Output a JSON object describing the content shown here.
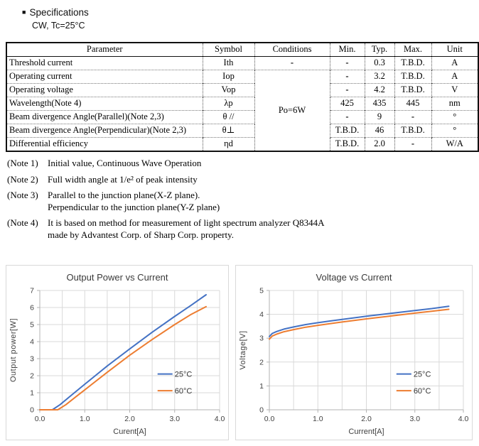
{
  "header": {
    "bullet": "■",
    "title": "Specifications",
    "condition": "CW, Tc=25°C"
  },
  "table": {
    "headers": [
      "Parameter",
      "Symbol",
      "Conditions",
      "Min.",
      "Typ.",
      "Max.",
      "Unit"
    ],
    "merged_condition": "Po=6W",
    "rows": [
      {
        "parameter": "Threshold current",
        "symbol": "Ith",
        "condition": "-",
        "min": "-",
        "typ": "0.3",
        "max": "T.B.D.",
        "unit": "A"
      },
      {
        "parameter": "Operating current",
        "symbol": "Iop",
        "min": "-",
        "typ": "3.2",
        "max": "T.B.D.",
        "unit": "A"
      },
      {
        "parameter": "Operating voltage",
        "symbol": "Vop",
        "min": "-",
        "typ": "4.2",
        "max": "T.B.D.",
        "unit": "V"
      },
      {
        "parameter": "Wavelength(Note 4)",
        "symbol": "λp",
        "min": "425",
        "typ": "435",
        "max": "445",
        "unit": "nm"
      },
      {
        "parameter": "Beam divergence Angle(Parallel)(Note 2,3)",
        "symbol": "θ //",
        "min": "-",
        "typ": "9",
        "max": "-",
        "unit": "°"
      },
      {
        "parameter": "Beam divergence Angle(Perpendicular)(Note 2,3)",
        "symbol": "θ⊥",
        "min": "T.B.D.",
        "typ": "46",
        "max": "T.B.D.",
        "unit": "°"
      },
      {
        "parameter": "Differential efficiency",
        "symbol": "ηd",
        "min": "T.B.D.",
        "typ": "2.0",
        "max": "-",
        "unit": "W/A"
      }
    ]
  },
  "notes": [
    {
      "label": "(Note 1)",
      "lines": [
        "Initial value, Continuous Wave Operation"
      ]
    },
    {
      "label": "(Note 2)",
      "lines": [
        "Full width angle at 1/e² of peak intensity"
      ]
    },
    {
      "label": "(Note 3)",
      "lines": [
        "Parallel to the junction plane(X-Z plane).",
        "Perpendicular to the junction plane(Y-Z plane)"
      ]
    },
    {
      "label": "(Note 4)",
      "lines": [
        "It is based on method for measurement of light spectrum analyzer Q8344A",
        "made by Advantest Corp. of Sharp Corp. property."
      ]
    }
  ],
  "chart_data": [
    {
      "type": "line",
      "title": "Output Power vs Current",
      "xlabel": "Curent[A]",
      "ylabel": "Output power[W]",
      "xlim": [
        0,
        4.0
      ],
      "ylim": [
        0,
        7
      ],
      "xticks": [
        0,
        1,
        2,
        3,
        4
      ],
      "xtick_labels": [
        "0.0",
        "1.0",
        "2.0",
        "3.0",
        "4.0"
      ],
      "yticks": [
        0,
        1,
        2,
        3,
        4,
        5,
        6,
        7
      ],
      "x_grid_step": 0.5,
      "grid": true,
      "legend_position": "inside-right",
      "series": [
        {
          "name": "25°C",
          "color": "#4472C4",
          "points": [
            [
              0,
              0
            ],
            [
              0.28,
              0
            ],
            [
              0.45,
              0.3
            ],
            [
              0.7,
              0.85
            ],
            [
              1.0,
              1.5
            ],
            [
              1.5,
              2.57
            ],
            [
              2.0,
              3.57
            ],
            [
              2.5,
              4.55
            ],
            [
              3.0,
              5.48
            ],
            [
              3.35,
              6.1
            ],
            [
              3.7,
              6.75
            ]
          ]
        },
        {
          "name": "60°C",
          "color": "#ED7D31",
          "points": [
            [
              0,
              0
            ],
            [
              0.4,
              0
            ],
            [
              0.58,
              0.3
            ],
            [
              0.8,
              0.76
            ],
            [
              1.0,
              1.17
            ],
            [
              1.5,
              2.2
            ],
            [
              2.0,
              3.2
            ],
            [
              2.5,
              4.12
            ],
            [
              3.0,
              5.0
            ],
            [
              3.35,
              5.57
            ],
            [
              3.7,
              6.05
            ]
          ]
        }
      ]
    },
    {
      "type": "line",
      "title": "Voltage vs Current",
      "xlabel": "Current[A]",
      "ylabel": "Voltage[V]",
      "xlim": [
        0,
        4.0
      ],
      "ylim": [
        0,
        5
      ],
      "xticks": [
        0,
        1,
        2,
        3,
        4
      ],
      "xtick_labels": [
        "0.0",
        "1.0",
        "2.0",
        "3.0",
        "4.0"
      ],
      "yticks": [
        0,
        1,
        2,
        3,
        4,
        5
      ],
      "x_grid_step": 0.5,
      "grid": true,
      "legend_position": "inside-right",
      "series": [
        {
          "name": "25°C",
          "color": "#4472C4",
          "points": [
            [
              0,
              3.07
            ],
            [
              0.06,
              3.2
            ],
            [
              0.15,
              3.28
            ],
            [
              0.3,
              3.38
            ],
            [
              0.5,
              3.47
            ],
            [
              0.75,
              3.57
            ],
            [
              1.0,
              3.65
            ],
            [
              1.25,
              3.72
            ],
            [
              1.5,
              3.79
            ],
            [
              2.0,
              3.92
            ],
            [
              2.5,
              4.04
            ],
            [
              3.0,
              4.16
            ],
            [
              3.35,
              4.24
            ],
            [
              3.7,
              4.34
            ]
          ]
        },
        {
          "name": "60°C",
          "color": "#ED7D31",
          "points": [
            [
              0,
              2.96
            ],
            [
              0.06,
              3.09
            ],
            [
              0.15,
              3.17
            ],
            [
              0.3,
              3.27
            ],
            [
              0.5,
              3.36
            ],
            [
              0.75,
              3.46
            ],
            [
              1.0,
              3.54
            ],
            [
              1.25,
              3.61
            ],
            [
              1.5,
              3.68
            ],
            [
              2.0,
              3.81
            ],
            [
              2.5,
              3.93
            ],
            [
              3.0,
              4.05
            ],
            [
              3.35,
              4.13
            ],
            [
              3.7,
              4.21
            ]
          ]
        }
      ]
    }
  ]
}
